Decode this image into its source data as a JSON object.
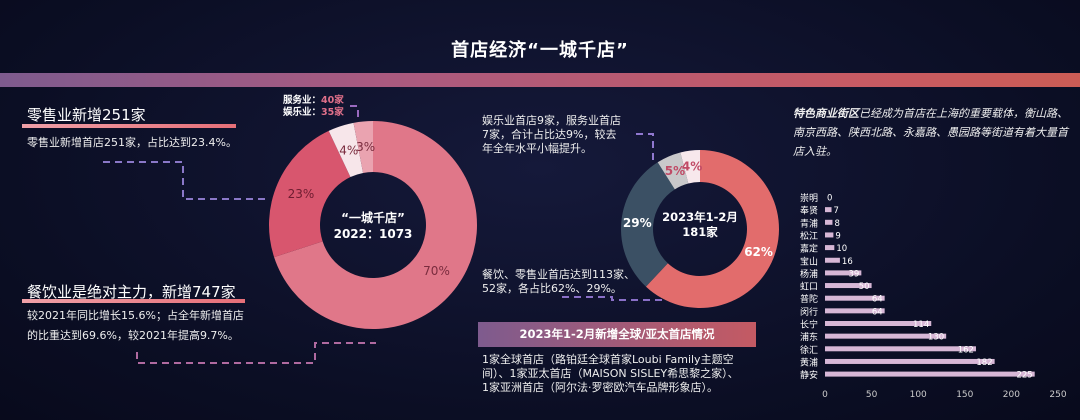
{
  "title": "首店经济“一城千店”",
  "left": {
    "retail_heading": "零售业新增251家",
    "retail_desc": "零售业新增首店251家，占比达到23.4%。",
    "food_heading": "餐饮业是绝对主力，新增747家",
    "food_desc_1": "较2021年同比增长15.6%；占全年新增首店",
    "food_desc_2": "的比重达到69.6%，较2021年提高9.7%。",
    "service_label": "服务业：",
    "service_value": "40家",
    "ent_label": "娱乐业：",
    "ent_value": "35家"
  },
  "middle": {
    "ent_desc": [
      "娱乐业首店9家，服务业首店",
      "7家，合计占比达9%，较去",
      "年全年水平小幅提升。"
    ],
    "food_desc": [
      "餐饮、零售业首店达到113家、",
      "52家，各占比62%、29%。"
    ],
    "banner": "2023年1-2月新增全球/亚太首店情况",
    "banner_desc": [
      "1家全球首店（路铂廷全球首家Loubi Family主题空",
      "间）、1家亚太首店（MAISON SISLEY希思黎之家）、",
      "1家亚洲首店（阿尔法·罗密欧汽车品牌形象店）。"
    ]
  },
  "right": {
    "highlight": "特色商业街区",
    "text": "已经成为首店在上海的重要载体，衡山路、南京西路、陕西北路、永嘉路、愚园路等街道有着大量首店入驻。"
  },
  "chart_data": [
    {
      "type": "pie",
      "name": "2022",
      "center": [
        "“一城千店”",
        "2022：1073"
      ],
      "slices": [
        {
          "label": "70%",
          "value": 70,
          "color": "#e07789",
          "text": "#7a2c3e"
        },
        {
          "label": "23%",
          "value": 23,
          "color": "#d8566e",
          "text": "#6e1c30"
        },
        {
          "label": "4%",
          "value": 4,
          "color": "#f7e6ea",
          "text": "#7a2c3e"
        },
        {
          "label": "3%",
          "value": 3,
          "color": "#eaa3b0",
          "text": "#7a2c3e"
        }
      ]
    },
    {
      "type": "pie",
      "name": "2023",
      "center": [
        "2023年1-2月",
        "181家"
      ],
      "slices": [
        {
          "label": "62%",
          "value": 62,
          "color": "#e26c6c",
          "text": "#ffffff"
        },
        {
          "label": "29%",
          "value": 29,
          "color": "#3b5064",
          "text": "#ffffff"
        },
        {
          "label": "5%",
          "value": 5,
          "color": "#c9c8ca",
          "text": "#c04a66"
        },
        {
          "label": "4%",
          "value": 4,
          "color": "#f7e8ec",
          "text": "#c04a66"
        }
      ]
    },
    {
      "type": "bar",
      "orientation": "horizontal",
      "categories": [
        "崇明",
        "奉贤",
        "青浦",
        "松江",
        "嘉定",
        "宝山",
        "杨浦",
        "虹口",
        "普陀",
        "闵行",
        "长宁",
        "浦东",
        "徐汇",
        "黄浦",
        "静安"
      ],
      "values": [
        0,
        7,
        8,
        9,
        10,
        16,
        39,
        50,
        64,
        64,
        114,
        130,
        162,
        182,
        225
      ],
      "xlim": [
        0,
        250
      ],
      "xticks": [
        0,
        50,
        100,
        150,
        200,
        250
      ],
      "bar_color": "#d7b7d6"
    }
  ]
}
